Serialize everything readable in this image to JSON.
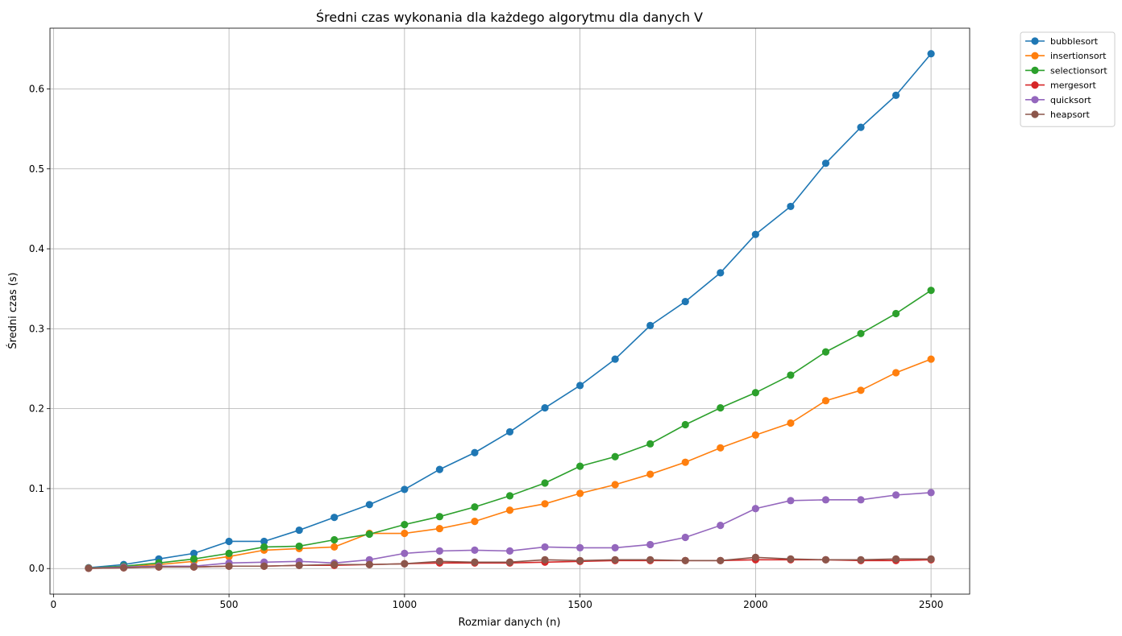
{
  "chart_data": {
    "type": "line",
    "title": "Średni czas wykonania dla każdego algorytmu dla danych V",
    "xlabel": "Rozmiar danych (n)",
    "ylabel": "Średni czas (s)",
    "xlim": [
      -10,
      2610
    ],
    "ylim": [
      -0.032,
      0.676
    ],
    "xticks": [
      0,
      500,
      1000,
      1500,
      2000,
      2500
    ],
    "yticks": [
      0.0,
      0.1,
      0.2,
      0.3,
      0.4,
      0.5,
      0.6
    ],
    "xtick_labels": [
      "0",
      "500",
      "1000",
      "1500",
      "2000",
      "2500"
    ],
    "ytick_labels": [
      "0.0",
      "0.1",
      "0.2",
      "0.3",
      "0.4",
      "0.5",
      "0.6"
    ],
    "grid": true,
    "legend_position": "outside-top-right",
    "x": [
      100,
      200,
      300,
      400,
      500,
      600,
      700,
      800,
      900,
      1000,
      1100,
      1200,
      1300,
      1400,
      1500,
      1600,
      1700,
      1800,
      1900,
      2000,
      2100,
      2200,
      2300,
      2400,
      2500
    ],
    "series": [
      {
        "name": "bubblesort",
        "color": "#1f77b4",
        "values": [
          0.001,
          0.005,
          0.012,
          0.019,
          0.034,
          0.034,
          0.048,
          0.064,
          0.08,
          0.099,
          0.124,
          0.145,
          0.171,
          0.201,
          0.229,
          0.262,
          0.304,
          0.334,
          0.37,
          0.418,
          0.453,
          0.507,
          0.552,
          0.592,
          0.644
        ]
      },
      {
        "name": "insertionsort",
        "color": "#ff7f0e",
        "values": [
          0.0005,
          0.002,
          0.005,
          0.009,
          0.015,
          0.023,
          0.025,
          0.027,
          0.044,
          0.044,
          0.05,
          0.059,
          0.073,
          0.081,
          0.094,
          0.105,
          0.118,
          0.133,
          0.151,
          0.167,
          0.182,
          0.21,
          0.223,
          0.245,
          0.262
        ]
      },
      {
        "name": "selectionsort",
        "color": "#2ca02c",
        "values": [
          0.0008,
          0.003,
          0.007,
          0.012,
          0.019,
          0.027,
          0.028,
          0.036,
          0.043,
          0.055,
          0.065,
          0.077,
          0.091,
          0.107,
          0.128,
          0.14,
          0.156,
          0.18,
          0.201,
          0.22,
          0.242,
          0.271,
          0.294,
          0.319,
          0.348
        ]
      },
      {
        "name": "mergesort",
        "color": "#d62728",
        "values": [
          0.0003,
          0.001,
          0.002,
          0.002,
          0.003,
          0.003,
          0.004,
          0.004,
          0.005,
          0.006,
          0.007,
          0.007,
          0.007,
          0.008,
          0.009,
          0.01,
          0.01,
          0.01,
          0.01,
          0.011,
          0.011,
          0.011,
          0.01,
          0.01,
          0.011
        ]
      },
      {
        "name": "quicksort",
        "color": "#9467bd",
        "values": [
          0.0005,
          0.002,
          0.003,
          0.003,
          0.007,
          0.008,
          0.009,
          0.007,
          0.011,
          0.019,
          0.022,
          0.023,
          0.022,
          0.027,
          0.026,
          0.026,
          0.03,
          0.039,
          0.054,
          0.075,
          0.085,
          0.086,
          0.086,
          0.092,
          0.095
        ]
      },
      {
        "name": "heapsort",
        "color": "#8c564b",
        "values": [
          0.0003,
          0.001,
          0.002,
          0.002,
          0.003,
          0.003,
          0.004,
          0.005,
          0.005,
          0.006,
          0.009,
          0.008,
          0.008,
          0.011,
          0.01,
          0.011,
          0.011,
          0.01,
          0.01,
          0.014,
          0.012,
          0.011,
          0.011,
          0.012,
          0.012
        ]
      }
    ]
  }
}
